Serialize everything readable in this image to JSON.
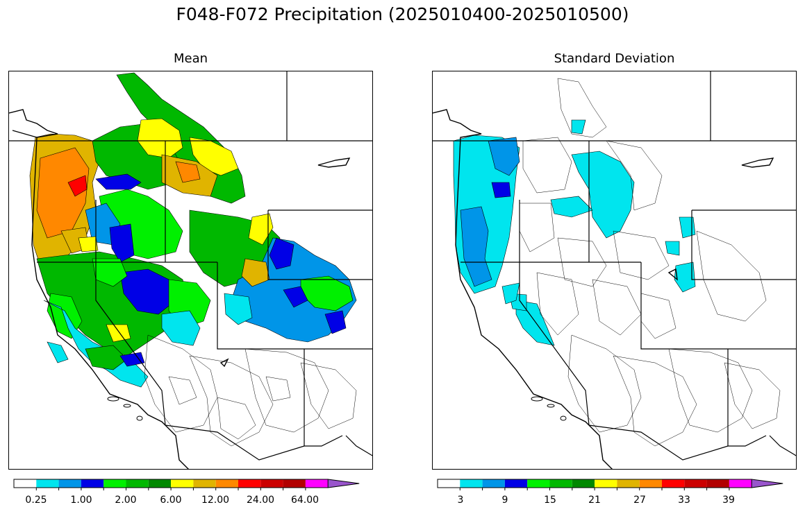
{
  "title": "F048-F072 Precipitation (2025010400-2025010500)",
  "panels": {
    "mean": {
      "title": "Mean",
      "colorbar": {
        "colors": [
          "#ffffff",
          "#00e5ee",
          "#0095e8",
          "#0000e6",
          "#00f000",
          "#00b800",
          "#008800",
          "#ffff00",
          "#e0b400",
          "#ff8800",
          "#ff0000",
          "#cc0000",
          "#b20000",
          "#ff00ff",
          "#9955cc"
        ],
        "tick_labels": [
          "0.25",
          "1.00",
          "2.00",
          "6.00",
          "12.00",
          "24.00",
          "64.00"
        ],
        "extend": "max"
      }
    },
    "stdev": {
      "title": "Standard Deviation",
      "colorbar": {
        "colors": [
          "#ffffff",
          "#00e5ee",
          "#0095e8",
          "#0000e6",
          "#00f000",
          "#00b800",
          "#008800",
          "#ffff00",
          "#e0b400",
          "#ff8800",
          "#ff0000",
          "#cc0000",
          "#b20000",
          "#ff00ff",
          "#9955cc"
        ],
        "tick_labels": [
          "3",
          "9",
          "15",
          "21",
          "27",
          "33",
          "39"
        ],
        "extend": "max"
      }
    }
  }
}
